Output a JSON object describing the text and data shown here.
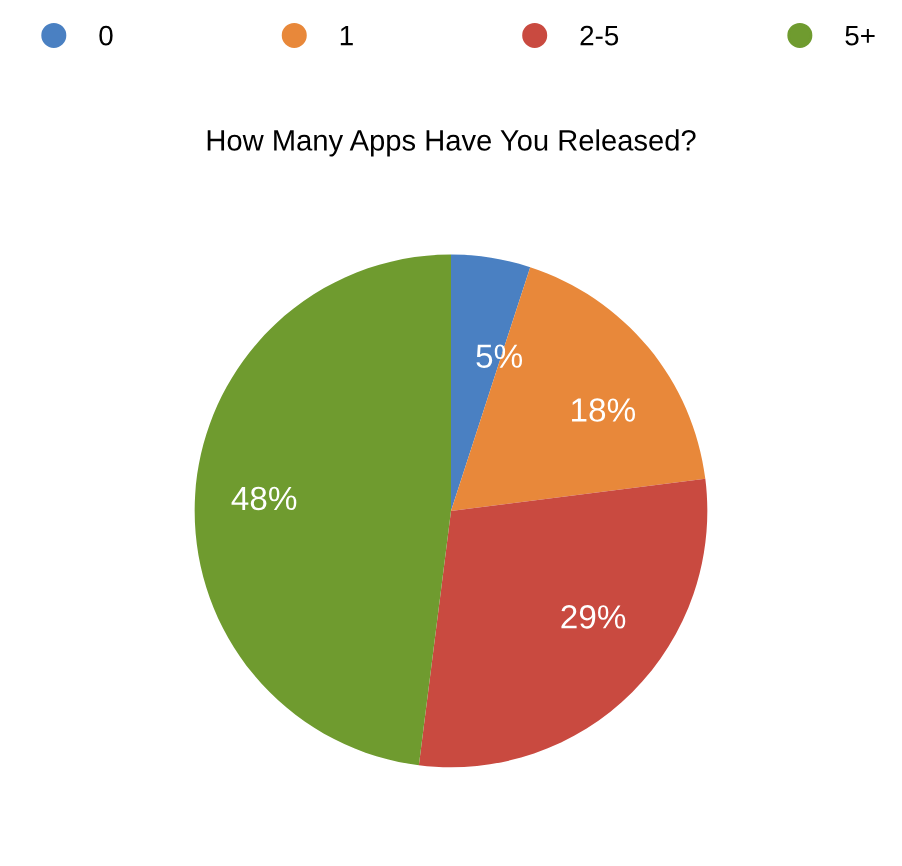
{
  "chart_data": {
    "type": "pie",
    "title": "How Many Apps Have You Released?",
    "categories": [
      "0",
      "1",
      "2-5",
      "5+"
    ],
    "values": [
      5,
      18,
      29,
      48
    ],
    "colors": [
      "#4a80c2",
      "#e8883a",
      "#c94a40",
      "#6f9b2f"
    ],
    "value_labels": [
      "5%",
      "18%",
      "29%",
      "48%"
    ],
    "legend": "top"
  }
}
